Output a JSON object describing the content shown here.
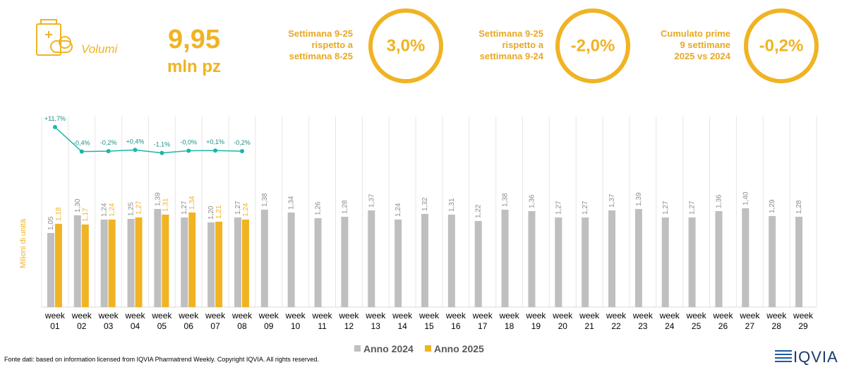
{
  "header": {
    "title": "Volumi",
    "total": "9,95",
    "unit": "mln pz"
  },
  "kpis": [
    {
      "label": [
        "Settimana 9-25",
        "rispetto a",
        "settimana 8-25"
      ],
      "value": "3,0%"
    },
    {
      "label": [
        "Settimana 9-25",
        "rispetto a",
        "settimana 9-24"
      ],
      "value": "-2,0%"
    },
    {
      "label": [
        "Cumulato prime",
        "9 settimane",
        "2025 vs 2024"
      ],
      "value": "-0,2%"
    }
  ],
  "chart_data": {
    "type": "bar",
    "y_label": "Milioni di unità",
    "categories": [
      "week 01",
      "week 02",
      "week 03",
      "week 04",
      "week 05",
      "week 06",
      "week 07",
      "week 08",
      "week 09",
      "week 10",
      "week 11",
      "week 12",
      "week 13",
      "week 14",
      "week 15",
      "week 16",
      "week 17",
      "week 18",
      "week 19",
      "week 20",
      "week 21",
      "week 22",
      "week 23",
      "week 24",
      "week 25",
      "week 26",
      "week 27",
      "week 28",
      "week 29"
    ],
    "series": [
      {
        "name": "Anno 2024",
        "color": "#bfbfbf",
        "values": [
          1.05,
          1.3,
          1.24,
          1.25,
          1.39,
          1.27,
          1.2,
          1.27,
          1.38,
          1.34,
          1.26,
          1.28,
          1.37,
          1.24,
          1.32,
          1.31,
          1.22,
          1.38,
          1.36,
          1.27,
          1.27,
          1.37,
          1.39,
          1.27,
          1.27,
          1.36,
          1.4,
          1.29,
          1.28
        ],
        "value_labels": [
          "1,05",
          "1,30",
          "1,24",
          "1,25",
          "1,39",
          "1,27",
          "1,20",
          "1,27",
          "1,38",
          "1,34",
          "1,26",
          "1,28",
          "1,37",
          "1,24",
          "1,32",
          "1,31",
          "1,22",
          "1,38",
          "1,36",
          "1,27",
          "1,27",
          "1,37",
          "1,39",
          "1,27",
          "1,27",
          "1,36",
          "1,40",
          "1,29",
          "1,28"
        ]
      },
      {
        "name": "Anno 2025",
        "color": "#f0b323",
        "values": [
          1.18,
          1.17,
          1.24,
          1.27,
          1.31,
          1.34,
          1.21,
          1.24,
          null,
          null,
          null,
          null,
          null,
          null,
          null,
          null,
          null,
          null,
          null,
          null,
          null,
          null,
          null,
          null,
          null,
          null,
          null,
          null,
          null
        ],
        "value_labels": [
          "1,18",
          "1,17",
          "1,24",
          "1,27",
          "1,31",
          "1,34",
          "1,21",
          "1,24",
          null,
          null,
          null,
          null,
          null,
          null,
          null,
          null,
          null,
          null,
          null,
          null,
          null,
          null,
          null,
          null,
          null,
          null,
          null,
          null,
          null
        ]
      }
    ],
    "growth": {
      "color": "#1cb5a8",
      "values": [
        11.7,
        -0.4,
        -0.2,
        0.4,
        -1.1,
        -0.0,
        0.1,
        -0.2,
        null,
        null,
        null,
        null,
        null,
        null,
        null,
        null,
        null,
        null,
        null,
        null,
        null,
        null,
        null,
        null,
        null,
        null,
        null,
        null,
        null
      ],
      "value_labels": [
        "+11,7%",
        "-0,4%",
        "-0,2%",
        "+0,4%",
        "-1,1%",
        "-0,0%",
        "+0,1%",
        "-0,2%",
        null,
        null,
        null,
        null,
        null,
        null,
        null,
        null,
        null,
        null,
        null,
        null,
        null,
        null,
        null,
        null,
        null,
        null,
        null,
        null,
        null
      ]
    }
  },
  "footer": {
    "source": "Fonte dati: based on information licensed from IQVIA Pharmatrend Weekly. Copyright IQVIA. All rights reserved.",
    "logo": "IQVIA"
  }
}
